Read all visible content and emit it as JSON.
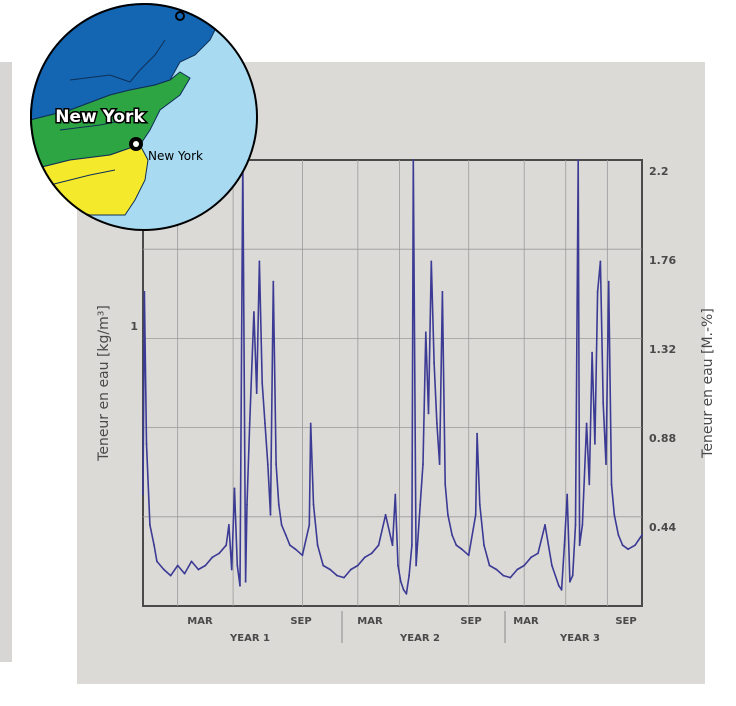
{
  "map": {
    "label_region": "New York",
    "label_city": "New York",
    "colors": {
      "ocean": "#a8daf2",
      "north": "#1466b3",
      "middle": "#2ea543",
      "south": "#f5e92c",
      "border": "#000000"
    }
  },
  "chart_data": {
    "type": "line",
    "ylabel_left": "Teneur en eau [kg/m³]",
    "ylabel_right": "Teneur en eau [M.-%]",
    "left_ticks": [
      "1"
    ],
    "right_ticks": [
      "2.2",
      "1.76",
      "1.32",
      "0.88",
      "0.44"
    ],
    "right_ylim": [
      0,
      2.2
    ],
    "month_ticks": [
      "MAR",
      "SEP",
      "MAR",
      "SEP",
      "MAR",
      "SEP"
    ],
    "year_labels": [
      "YEAR 1",
      "YEAR 2",
      "YEAR 3"
    ],
    "grid": true,
    "line_color": "#3b3a94",
    "series": [
      {
        "x_months": [
          0,
          0.1,
          0.25,
          0.5,
          0.8,
          1,
          1.5,
          2,
          2.5,
          3,
          3.5,
          4,
          4.5,
          5,
          5.5,
          6,
          6.2,
          6.4,
          6.6,
          6.8,
          7,
          7.2,
          7.4,
          7.5,
          7.7,
          8,
          8.2,
          8.4,
          8.6,
          8.8,
          9,
          9.2,
          9.4,
          9.6,
          9.8,
          10,
          10.3,
          10.6,
          11,
          11.5,
          12,
          12.1,
          12.3,
          12.6,
          13,
          13.5,
          14,
          14.5,
          15,
          15.5,
          16,
          16.5,
          17,
          17.5,
          18,
          18.2,
          18.4,
          18.6,
          18.8,
          19,
          19.2,
          19.4,
          19.5,
          19.7,
          20,
          20.2,
          20.4,
          20.6,
          20.8,
          21,
          21.2,
          21.4,
          21.6,
          21.8,
          22,
          22.3,
          22.6,
          23,
          23.5,
          24,
          24.1,
          24.3,
          24.6,
          25,
          25.5,
          26,
          26.5,
          27,
          27.5,
          28,
          28.5,
          29,
          29.5,
          30,
          30.2,
          30.4,
          30.6,
          30.8,
          31,
          31.2,
          31.4,
          31.5,
          31.7,
          32,
          32.2,
          32.4,
          32.6,
          32.8,
          33,
          33.2,
          33.4,
          33.6,
          33.8,
          34,
          34.3,
          34.6,
          35,
          35.5,
          36
        ],
        "y_pct": [
          0.55,
          1.55,
          0.8,
          0.4,
          0.3,
          0.22,
          0.18,
          0.15,
          0.2,
          0.16,
          0.22,
          0.18,
          0.2,
          0.24,
          0.26,
          0.3,
          0.4,
          0.18,
          0.58,
          0.2,
          0.1,
          2.2,
          0.12,
          0.5,
          0.9,
          1.45,
          1.05,
          1.7,
          1.1,
          0.9,
          0.7,
          0.45,
          1.6,
          0.7,
          0.5,
          0.4,
          0.35,
          0.3,
          0.28,
          0.25,
          0.4,
          0.9,
          0.5,
          0.3,
          0.2,
          0.18,
          0.15,
          0.14,
          0.18,
          0.2,
          0.24,
          0.26,
          0.3,
          0.45,
          0.3,
          0.55,
          0.2,
          0.12,
          0.08,
          0.06,
          0.15,
          0.3,
          2.2,
          0.2,
          0.5,
          0.7,
          1.35,
          0.95,
          1.7,
          1.2,
          0.9,
          0.7,
          1.55,
          0.6,
          0.45,
          0.35,
          0.3,
          0.28,
          0.25,
          0.45,
          0.85,
          0.5,
          0.3,
          0.2,
          0.18,
          0.15,
          0.14,
          0.18,
          0.2,
          0.24,
          0.26,
          0.4,
          0.2,
          0.1,
          0.08,
          0.3,
          0.55,
          0.12,
          0.15,
          0.4,
          2.2,
          0.3,
          0.4,
          0.9,
          0.6,
          1.25,
          0.8,
          1.55,
          1.7,
          1.0,
          0.7,
          1.6,
          0.6,
          0.45,
          0.35,
          0.3,
          0.28,
          0.3,
          0.35
        ]
      }
    ]
  }
}
